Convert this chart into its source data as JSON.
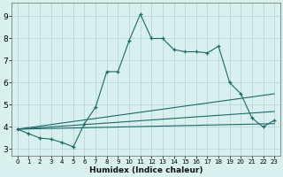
{
  "xlabel": "Humidex (Indice chaleur)",
  "xlim": [
    -0.5,
    23.5
  ],
  "ylim": [
    2.7,
    9.6
  ],
  "xticks": [
    0,
    1,
    2,
    3,
    4,
    5,
    6,
    7,
    8,
    9,
    10,
    11,
    12,
    13,
    14,
    15,
    16,
    17,
    18,
    19,
    20,
    21,
    22,
    23
  ],
  "yticks": [
    3,
    4,
    5,
    6,
    7,
    8,
    9
  ],
  "bg_color": "#d8f0ee",
  "grid_color": "#b8d8d4",
  "line_color": "#1a6b65",
  "line1_x": [
    0,
    1,
    2,
    3,
    4,
    5,
    6,
    7,
    8,
    9,
    10,
    11,
    12,
    13,
    14,
    15,
    16,
    17,
    18,
    19,
    20,
    21,
    22,
    23
  ],
  "line1_y": [
    3.9,
    3.7,
    3.5,
    3.45,
    3.3,
    3.1,
    4.15,
    4.9,
    6.5,
    6.5,
    7.9,
    9.1,
    8.0,
    8.0,
    7.5,
    7.4,
    7.4,
    7.35,
    7.65,
    6.0,
    5.5,
    4.4,
    4.0,
    4.3
  ],
  "line3_x": [
    0,
    23
  ],
  "line3_y": [
    3.9,
    5.5
  ],
  "line4_x": [
    0,
    23
  ],
  "line4_y": [
    3.9,
    4.7
  ],
  "line5_x": [
    0,
    23
  ],
  "line5_y": [
    3.9,
    4.15
  ]
}
